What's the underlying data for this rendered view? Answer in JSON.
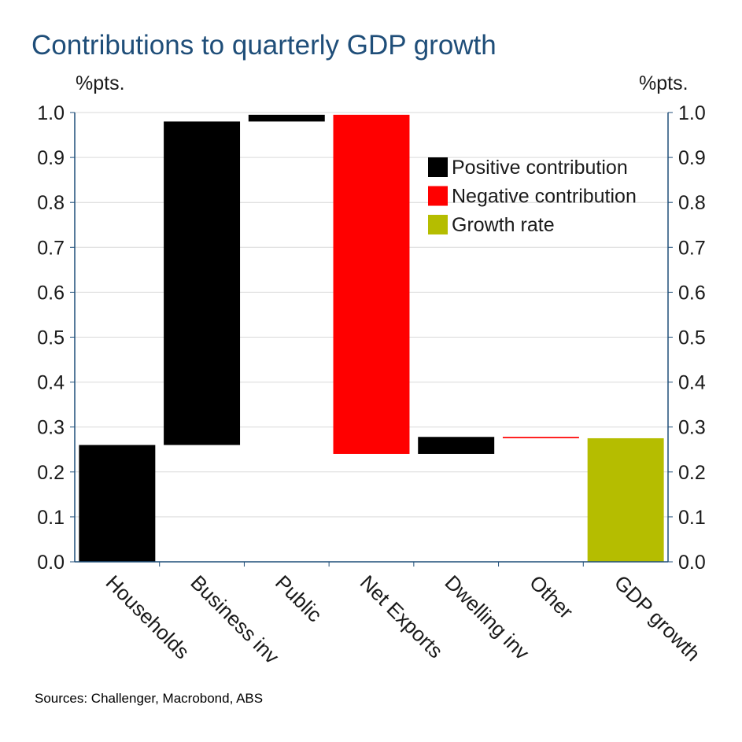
{
  "title": "Contributions to quarterly GDP growth",
  "unit_left": "%pts.",
  "unit_right": "%pts.",
  "source": "Sources: Challenger, Macrobond, ABS",
  "colors": {
    "positive": "#000000",
    "negative": "#ff0000",
    "growth": "#b5bd00",
    "axis": "#1f4e79",
    "grid": "#d9d9d9"
  },
  "chart_data": {
    "type": "bar",
    "subtype": "waterfall",
    "title": "Contributions to quarterly GDP growth",
    "ylabel": "%pts.",
    "ylim": [
      0,
      1.0
    ],
    "yticks": [
      "0.0",
      "0.1",
      "0.2",
      "0.3",
      "0.4",
      "0.5",
      "0.6",
      "0.7",
      "0.8",
      "0.9",
      "1.0"
    ],
    "grid": true,
    "legend_position": "top-right",
    "legend": [
      {
        "label": "Positive contribution",
        "color": "#000000"
      },
      {
        "label": "Negative contribution",
        "color": "#ff0000"
      },
      {
        "label": "Growth rate",
        "color": "#b5bd00"
      }
    ],
    "categories": [
      "Households",
      "Business inv",
      "Public",
      "Net Exports",
      "Dwelling inv",
      "Other",
      "GDP growth"
    ],
    "bars": [
      {
        "category": "Households",
        "start": 0.0,
        "end": 0.26,
        "kind": "positive"
      },
      {
        "category": "Business inv",
        "start": 0.26,
        "end": 0.98,
        "kind": "positive"
      },
      {
        "category": "Public",
        "start": 0.98,
        "end": 0.995,
        "kind": "positive"
      },
      {
        "category": "Net Exports",
        "start": 0.995,
        "end": 0.24,
        "kind": "negative"
      },
      {
        "category": "Dwelling inv",
        "start": 0.24,
        "end": 0.278,
        "kind": "positive"
      },
      {
        "category": "Other",
        "start": 0.278,
        "end": 0.275,
        "kind": "negative"
      },
      {
        "category": "GDP growth",
        "start": 0.0,
        "end": 0.275,
        "kind": "growth"
      }
    ]
  }
}
